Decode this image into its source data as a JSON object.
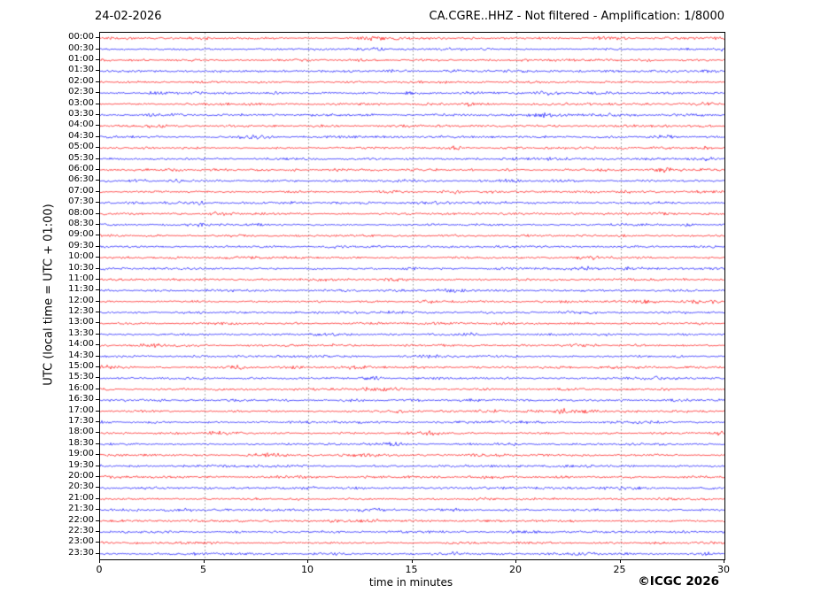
{
  "header": {
    "date": "24-02-2026",
    "station_title": "CA.CGRE..HHZ - Not filtered - Amplification: 1/8000"
  },
  "footer": {
    "credit": "©ICGC 2026"
  },
  "chart_data": {
    "type": "line",
    "variant": "helicorder-seismogram",
    "title": "CA.CGRE..HHZ - Not filtered - Amplification: 1/8000",
    "date": "24-02-2026",
    "xlabel": "time in minutes",
    "ylabel": "UTC (local time = UTC + 01:00)",
    "xlim": [
      0,
      30
    ],
    "xticks": [
      0,
      5,
      10,
      15,
      20,
      25,
      30
    ],
    "minutes_per_row": 30,
    "grid": {
      "vertical_dashed_at_minutes": [
        5,
        10,
        15,
        20,
        25
      ],
      "color": "#777777"
    },
    "colors": {
      "hour_row_trace": "#ff0000",
      "half_hour_row_trace": "#0000ff",
      "axis": "#000000",
      "background": "#ffffff"
    },
    "rows": [
      "00:00",
      "00:30",
      "01:00",
      "01:30",
      "02:00",
      "02:30",
      "03:00",
      "03:30",
      "04:00",
      "04:30",
      "05:00",
      "05:30",
      "06:00",
      "06:30",
      "07:00",
      "07:30",
      "08:00",
      "08:30",
      "09:00",
      "09:30",
      "10:00",
      "10:30",
      "11:00",
      "11:30",
      "12:00",
      "12:30",
      "13:00",
      "13:30",
      "14:00",
      "14:30",
      "15:00",
      "15:30",
      "16:00",
      "16:30",
      "17:00",
      "17:30",
      "18:00",
      "18:30",
      "19:00",
      "19:30",
      "20:00",
      "20:30",
      "21:00",
      "21:30",
      "22:00",
      "22:30",
      "23:00",
      "23:30"
    ],
    "series_description": "48 half-hour rows of continuous background seismic noise, low amplitude (~1-3 px), red on the hour and blue on the half hour",
    "events": [
      {
        "row": "17:00",
        "minute": 22.2,
        "note": "small amplitude burst"
      }
    ]
  }
}
